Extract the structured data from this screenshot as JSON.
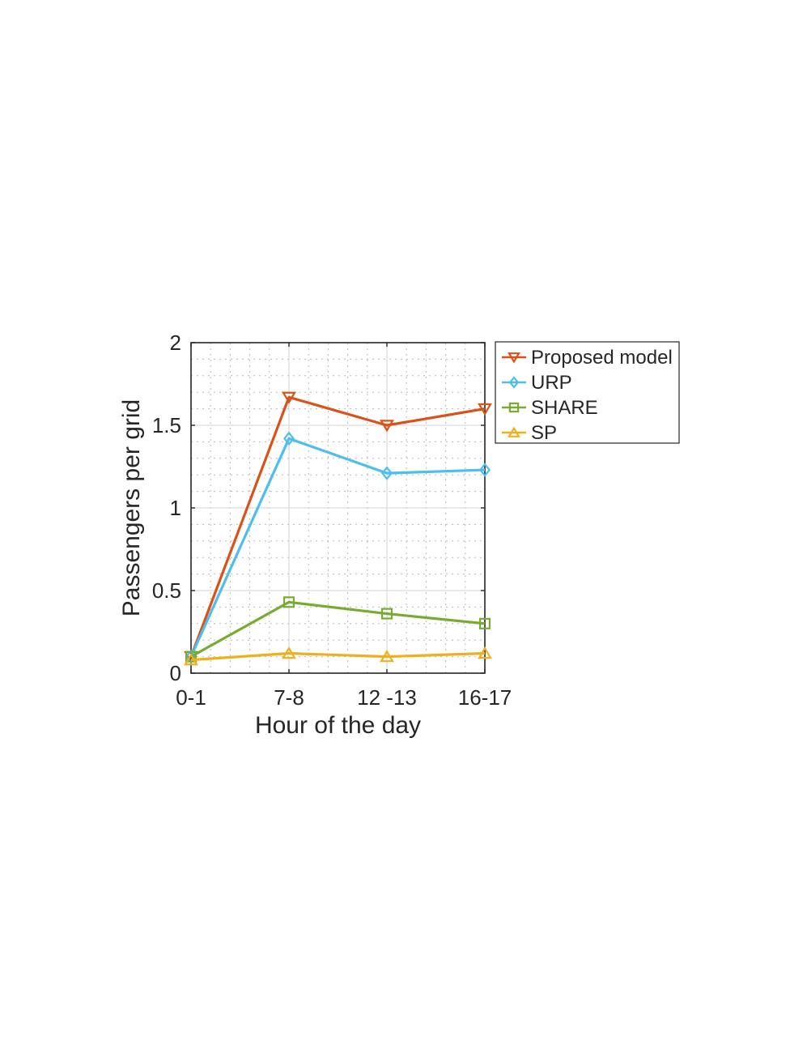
{
  "chart_data": {
    "type": "line",
    "title": "",
    "xlabel": "Hour of the day",
    "ylabel": "Passengers per grid",
    "categories": [
      "0-1",
      "7-8",
      "12 -13",
      "16-17"
    ],
    "ylim": [
      0,
      2
    ],
    "yticks": [
      0,
      0.5,
      1,
      1.5,
      2
    ],
    "ytick_labels": [
      "0",
      "0.5",
      "1",
      "1.5",
      "2"
    ],
    "grid": true,
    "minor_grid": true,
    "legend_position": "outside-top-right",
    "series": [
      {
        "name": "Proposed model",
        "values": [
          0.1,
          1.67,
          1.5,
          1.6
        ],
        "color": "#D95319",
        "marker": "triangle-down"
      },
      {
        "name": "URP",
        "values": [
          0.1,
          1.42,
          1.21,
          1.23
        ],
        "color": "#4DBEEE",
        "marker": "diamond"
      },
      {
        "name": "SHARE",
        "values": [
          0.1,
          0.43,
          0.36,
          0.3
        ],
        "color": "#77AC30",
        "marker": "square"
      },
      {
        "name": "SP",
        "values": [
          0.08,
          0.12,
          0.1,
          0.12
        ],
        "color": "#EDB120",
        "marker": "triangle-up"
      }
    ]
  }
}
